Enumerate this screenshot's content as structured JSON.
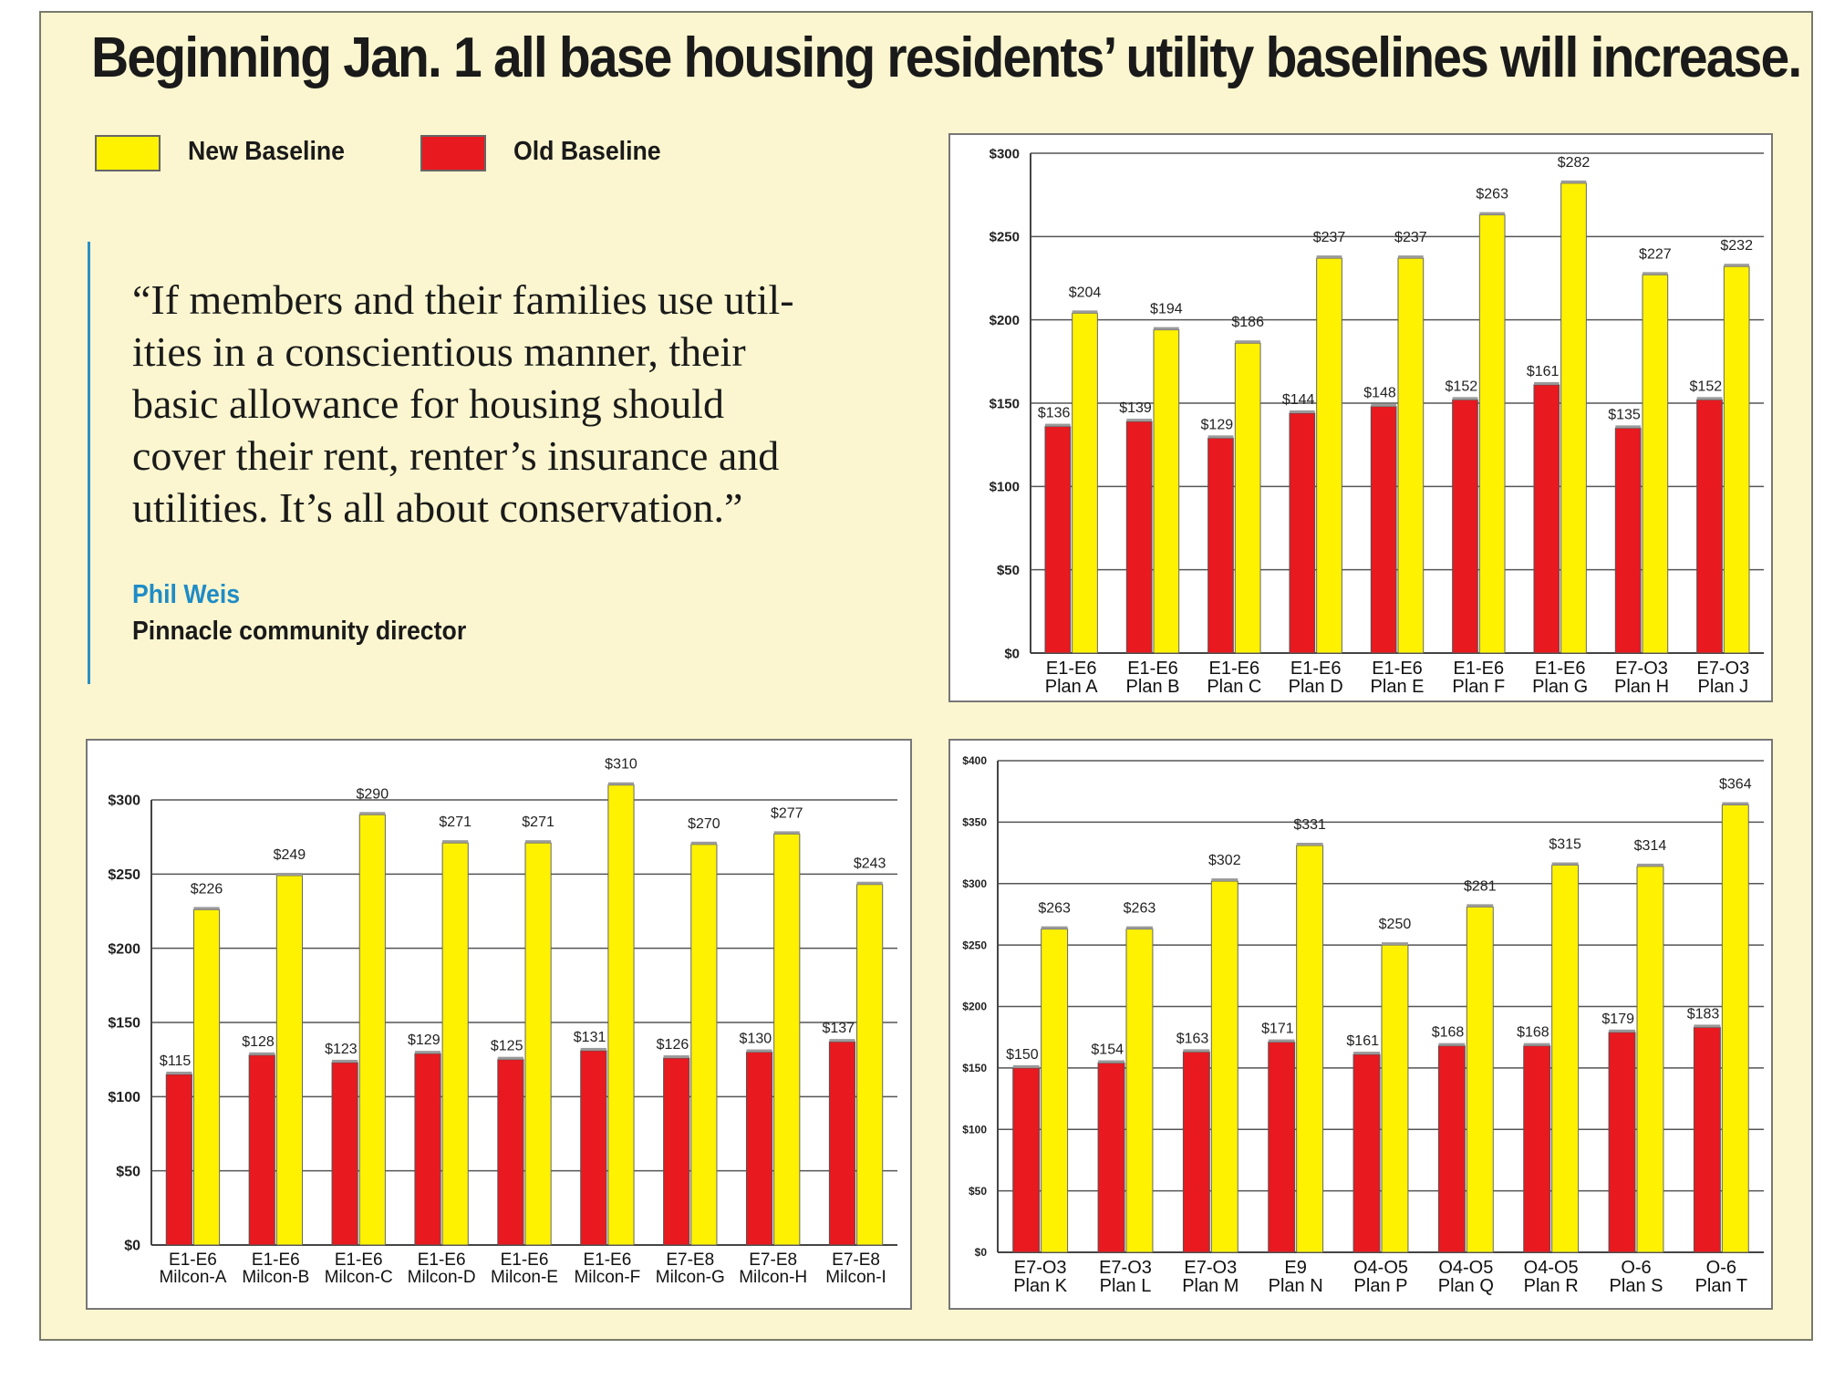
{
  "headline": "Beginning Jan. 1 all base housing residents’ utility baselines will increase.",
  "legend": [
    {
      "label": "New Baseline",
      "color": "#fff200"
    },
    {
      "label": "Old Baseline",
      "color": "#e8191f"
    }
  ],
  "quote": {
    "lines": [
      "“If members and their families use util-",
      "ities in a conscientious manner, their",
      "basic allowance for housing should",
      "cover their rent, renter’s insurance and",
      "utilities. It’s all about conservation.”"
    ],
    "author": "Phil Weis",
    "role": "Pinnacle community director"
  },
  "colors": {
    "new": "#fff200",
    "old": "#e8191f",
    "accent": "#1f8cc6",
    "background": "#fbf6cf"
  },
  "chart_data": [
    {
      "type": "bar",
      "ylim": [
        0,
        300
      ],
      "yticks": [
        "$0",
        "$50",
        "$100",
        "$150",
        "$200",
        "$250",
        "$300"
      ],
      "grid": true,
      "categories": [
        [
          "E1-E6",
          "Plan A"
        ],
        [
          "E1-E6",
          "Plan B"
        ],
        [
          "E1-E6",
          "Plan C"
        ],
        [
          "E1-E6",
          "Plan D"
        ],
        [
          "E1-E6",
          "Plan E"
        ],
        [
          "E1-E6",
          "Plan F"
        ],
        [
          "E1-E6",
          "Plan G"
        ],
        [
          "E7-O3",
          "Plan H"
        ],
        [
          "E7-O3",
          "Plan J"
        ]
      ],
      "series": [
        {
          "name": "Old Baseline",
          "values": [
            136,
            139,
            129,
            144,
            148,
            152,
            161,
            135,
            152
          ],
          "labels": [
            "$136",
            "$139",
            "$129",
            "$144",
            "$148",
            "$152",
            "$161",
            "$135",
            "$152"
          ]
        },
        {
          "name": "New Baseline",
          "values": [
            204,
            194,
            186,
            237,
            237,
            263,
            282,
            227,
            232
          ],
          "labels": [
            "$204",
            "$194",
            "$186",
            "$237",
            "$237",
            "$263",
            "$282",
            "$227",
            "$232"
          ]
        }
      ]
    },
    {
      "type": "bar",
      "ylim": [
        0,
        300
      ],
      "yticks": [
        "$0",
        "$50",
        "$100",
        "$150",
        "$200",
        "$250",
        "$300"
      ],
      "grid": true,
      "categories": [
        [
          "E1-E6",
          "Milcon-A"
        ],
        [
          "E1-E6",
          "Milcon-B"
        ],
        [
          "E1-E6",
          "Milcon-C"
        ],
        [
          "E1-E6",
          "Milcon-D"
        ],
        [
          "E1-E6",
          "Milcon-E"
        ],
        [
          "E1-E6",
          "Milcon-F"
        ],
        [
          "E7-E8",
          "Milcon-G"
        ],
        [
          "E7-E8",
          "Milcon-H"
        ],
        [
          "E7-E8",
          "Milcon-I"
        ]
      ],
      "series": [
        {
          "name": "Old Baseline",
          "values": [
            115,
            128,
            123,
            129,
            125,
            131,
            126,
            130,
            137
          ],
          "labels": [
            "$115",
            "$128",
            "$123",
            "$129",
            "$125",
            "$131",
            "$126",
            "$130",
            "$137"
          ]
        },
        {
          "name": "New Baseline",
          "values": [
            226,
            249,
            290,
            271,
            271,
            310,
            270,
            277,
            243
          ],
          "labels": [
            "$226",
            "$249",
            "$290",
            "$271",
            "$271",
            "$310",
            "$270",
            "$277",
            "$243"
          ]
        }
      ]
    },
    {
      "type": "bar",
      "ylim": [
        0,
        400
      ],
      "yticks": [
        "$0",
        "$50",
        "$100",
        "$150",
        "$200",
        "$250",
        "$300",
        "$350",
        "$400"
      ],
      "grid": true,
      "categories": [
        [
          "E7-O3",
          "Plan K"
        ],
        [
          "E7-O3",
          "Plan L"
        ],
        [
          "E7-O3",
          "Plan M"
        ],
        [
          "E9",
          "Plan N"
        ],
        [
          "O4-O5",
          "Plan P"
        ],
        [
          "O4-O5",
          "Plan Q"
        ],
        [
          "O4-O5",
          "Plan R"
        ],
        [
          "O-6",
          "Plan S"
        ],
        [
          "O-6",
          "Plan T"
        ]
      ],
      "series": [
        {
          "name": "Old Baseline",
          "values": [
            150,
            154,
            163,
            171,
            161,
            168,
            168,
            179,
            183
          ],
          "labels": [
            "$150",
            "$154",
            "$163",
            "$171",
            "$161",
            "$168",
            "$168",
            "$179",
            "$183"
          ]
        },
        {
          "name": "New Baseline",
          "values": [
            263,
            263,
            302,
            331,
            250,
            281,
            315,
            314,
            364
          ],
          "labels": [
            "$263",
            "$263",
            "$302",
            "$331",
            "$250",
            "$281",
            "$315",
            "$314",
            "$364"
          ]
        }
      ]
    }
  ]
}
